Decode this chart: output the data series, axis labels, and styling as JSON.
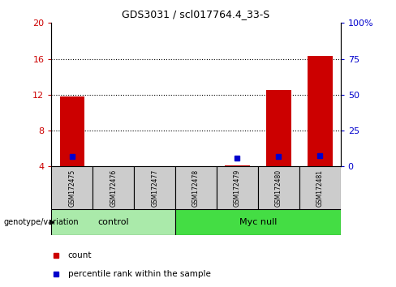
{
  "title": "GDS3031 / scl017764.4_33-S",
  "samples": [
    "GSM172475",
    "GSM172476",
    "GSM172477",
    "GSM172478",
    "GSM172479",
    "GSM172480",
    "GSM172481"
  ],
  "count_values": [
    11.8,
    4.05,
    4.05,
    4.05,
    4.1,
    12.5,
    16.3
  ],
  "percentile_values": [
    7.1,
    null,
    null,
    null,
    5.8,
    7.1,
    7.3
  ],
  "groups": [
    {
      "label": "control",
      "indices": [
        0,
        1,
        2
      ],
      "color": "#aaeaaa"
    },
    {
      "label": "Myc null",
      "indices": [
        3,
        4,
        5,
        6
      ],
      "color": "#44dd44"
    }
  ],
  "ylim": [
    4,
    20
  ],
  "yticks_left": [
    4,
    8,
    12,
    16,
    20
  ],
  "yticks_right": [
    0,
    25,
    50,
    75,
    100
  ],
  "ylabel_left_color": "#cc0000",
  "ylabel_right_color": "#0000cc",
  "bar_color": "#cc0000",
  "dot_color": "#0000cc",
  "dotted_line_y": [
    8,
    12,
    16
  ],
  "sample_box_color": "#cccccc",
  "legend_count_color": "#cc0000",
  "legend_pct_color": "#0000cc",
  "genotype_label": "genotype/variation",
  "legend_count_label": "count",
  "legend_pct_label": "percentile rank within the sample"
}
